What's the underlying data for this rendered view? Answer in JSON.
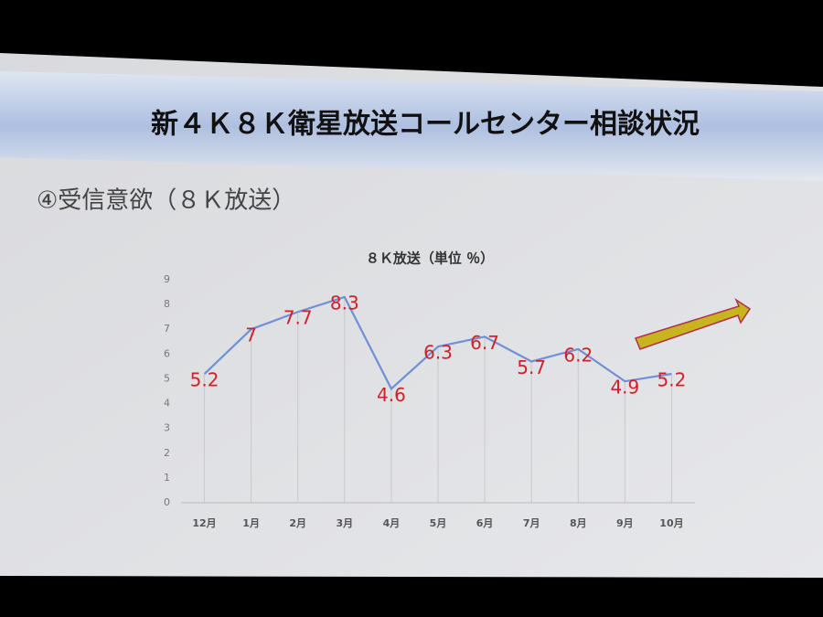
{
  "slide": {
    "title": "新４Ｋ８Ｋ衛星放送コールセンター相談状況",
    "subtitle": "④受信意欲（８Ｋ放送）"
  },
  "chart_data": {
    "type": "line",
    "title": "８Ｋ放送（単位 ％）",
    "categories": [
      "12月",
      "1月",
      "2月",
      "3月",
      "4月",
      "5月",
      "6月",
      "7月",
      "8月",
      "9月",
      "10月"
    ],
    "values": [
      5.2,
      7,
      7.7,
      8.3,
      4.6,
      6.3,
      6.7,
      5.7,
      6.2,
      4.9,
      5.2
    ],
    "color": "#6f8fd6",
    "label_color": "#d0202a",
    "ylim": [
      0,
      9
    ],
    "yticks": [
      0,
      1,
      2,
      3,
      4,
      5,
      6,
      7,
      8,
      9
    ],
    "drop_lines": true
  }
}
